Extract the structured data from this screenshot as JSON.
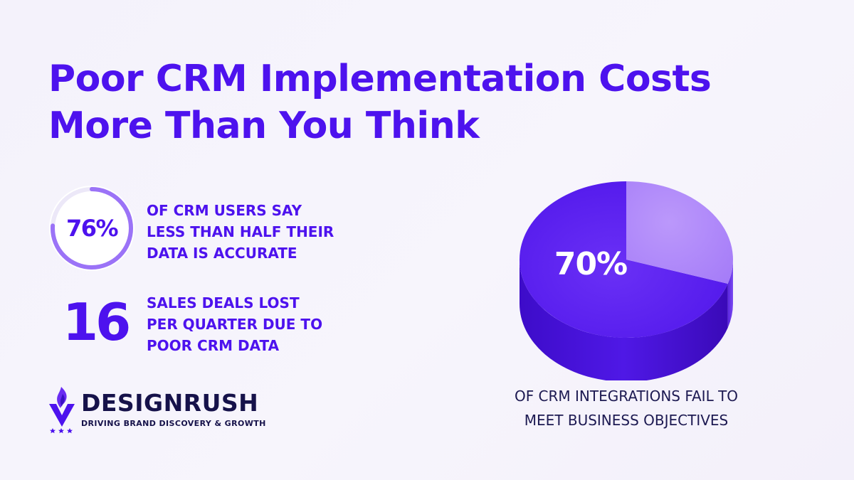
{
  "title": {
    "line1": "Poor CRM Implementation Costs",
    "line2": "More Than You Think"
  },
  "stats": [
    {
      "value": "76%",
      "percent": 76,
      "lines": [
        "OF CRM USERS SAY",
        "LESS THAN HALF THEIR",
        "DATA IS ACCURATE"
      ]
    },
    {
      "value": "16",
      "lines": [
        "SALES DEALS LOST",
        "PER QUARTER DUE TO",
        "POOR CRM DATA"
      ]
    }
  ],
  "chart_data": {
    "type": "pie",
    "slices": [
      {
        "value": 70,
        "color": "#5a20f0"
      },
      {
        "value": 30,
        "color": "#ad83f9"
      }
    ],
    "data_label": "70%",
    "caption_lines": [
      "OF CRM INTEGRATIONS FAIL TO",
      "MEET BUSINESS OBJECTIVES"
    ]
  },
  "logo": {
    "name": "DESIGNRUSH",
    "tagline": "DRIVING BRAND DISCOVERY & GROWTH",
    "icon": "flame-v-star-icon"
  },
  "colors": {
    "accent": "#4d12ee",
    "dark": "#16124a",
    "slice_major": "#5a20f0",
    "slice_minor": "#ad83f9"
  }
}
